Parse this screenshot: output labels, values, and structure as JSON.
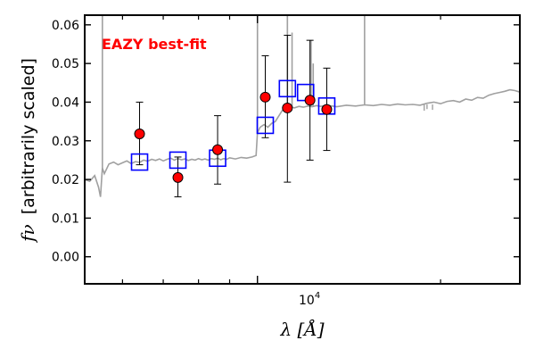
{
  "chart_data": {
    "type": "scatter",
    "annotation": "EAZY best-fit",
    "annotation_color": "#ff0000",
    "xlabel": "λ [Å]",
    "ylabel_symbol": "fν",
    "ylabel_text": "[arbitrarily scaled]",
    "xscale": "log",
    "xlim": [
      5200,
      27000
    ],
    "ylim": [
      -0.007,
      0.0625
    ],
    "yticks": [
      0.0,
      0.01,
      0.02,
      0.03,
      0.04,
      0.05,
      0.06
    ],
    "ytick_labels": [
      "0.00",
      "0.01",
      "0.02",
      "0.03",
      "0.04",
      "0.05",
      "0.06"
    ],
    "xtick_major": 10000,
    "xtick_label_base": "10",
    "xtick_label_exp": "4",
    "xtick_minor": [
      6000,
      7000,
      8000,
      9000,
      20000
    ],
    "grid": false,
    "colors": {
      "observed": "#ff0000",
      "model_phot": "#0000ff",
      "template": "#a0a0a0",
      "errorbar": "#000000"
    },
    "observed": [
      {
        "x": 6400,
        "y": 0.0318,
        "lo": 0.0238,
        "hi": 0.04
      },
      {
        "x": 7400,
        "y": 0.0205,
        "lo": 0.0155,
        "hi": 0.0258
      },
      {
        "x": 8600,
        "y": 0.0277,
        "lo": 0.0188,
        "hi": 0.0365
      },
      {
        "x": 10300,
        "y": 0.0413,
        "lo": 0.0308,
        "hi": 0.052
      },
      {
        "x": 11200,
        "y": 0.0385,
        "lo": 0.0193,
        "hi": 0.0573
      },
      {
        "x": 12200,
        "y": 0.0405,
        "lo": 0.025,
        "hi": 0.056
      },
      {
        "x": 13000,
        "y": 0.0381,
        "lo": 0.0275,
        "hi": 0.0488
      }
    ],
    "model_phot": [
      {
        "x": 6400,
        "y": 0.0245
      },
      {
        "x": 7400,
        "y": 0.025
      },
      {
        "x": 8600,
        "y": 0.0255
      },
      {
        "x": 10300,
        "y": 0.034
      },
      {
        "x": 11200,
        "y": 0.0435
      },
      {
        "x": 12000,
        "y": 0.0425
      },
      {
        "x": 13000,
        "y": 0.039
      }
    ],
    "template": [
      [
        5200,
        0.02
      ],
      [
        5300,
        0.0195
      ],
      [
        5400,
        0.021
      ],
      [
        5480,
        0.018
      ],
      [
        5520,
        0.0155
      ],
      [
        5560,
        0.023
      ],
      [
        5600,
        0.0215
      ],
      [
        5700,
        0.024
      ],
      [
        5800,
        0.0245
      ],
      [
        5900,
        0.0238
      ],
      [
        6000,
        0.0243
      ],
      [
        6100,
        0.0248
      ],
      [
        6200,
        0.0241
      ],
      [
        6300,
        0.0246
      ],
      [
        6400,
        0.0244
      ],
      [
        6500,
        0.025
      ],
      [
        6600,
        0.0247
      ],
      [
        6700,
        0.0252
      ],
      [
        6800,
        0.0249
      ],
      [
        6900,
        0.0253
      ],
      [
        7000,
        0.0248
      ],
      [
        7100,
        0.0252
      ],
      [
        7200,
        0.0255
      ],
      [
        7300,
        0.025
      ],
      [
        7400,
        0.0254
      ],
      [
        7500,
        0.0251
      ],
      [
        7600,
        0.0253
      ],
      [
        7700,
        0.0249
      ],
      [
        7800,
        0.0252
      ],
      [
        7900,
        0.025
      ],
      [
        8000,
        0.0254
      ],
      [
        8100,
        0.0251
      ],
      [
        8200,
        0.0253
      ],
      [
        8300,
        0.025
      ],
      [
        8400,
        0.0254
      ],
      [
        8500,
        0.0252
      ],
      [
        8600,
        0.0255
      ],
      [
        8700,
        0.0251
      ],
      [
        8800,
        0.0254
      ],
      [
        8900,
        0.0252
      ],
      [
        9000,
        0.0256
      ],
      [
        9200,
        0.0253
      ],
      [
        9400,
        0.0257
      ],
      [
        9600,
        0.0255
      ],
      [
        9800,
        0.0258
      ],
      [
        9950,
        0.0262
      ],
      [
        10000,
        0.032
      ],
      [
        10100,
        0.0335
      ],
      [
        10250,
        0.0342
      ],
      [
        10400,
        0.0335
      ],
      [
        10550,
        0.0345
      ],
      [
        10700,
        0.035
      ],
      [
        10850,
        0.0365
      ],
      [
        11000,
        0.038
      ],
      [
        11100,
        0.0385
      ],
      [
        11200,
        0.0387
      ],
      [
        11300,
        0.0383
      ],
      [
        11400,
        0.0387
      ],
      [
        11500,
        0.0385
      ],
      [
        11700,
        0.0389
      ],
      [
        11900,
        0.0387
      ],
      [
        12100,
        0.039
      ],
      [
        12300,
        0.0388
      ],
      [
        12500,
        0.0391
      ],
      [
        12700,
        0.0389
      ],
      [
        13000,
        0.0392
      ],
      [
        13500,
        0.0388
      ],
      [
        14000,
        0.0392
      ],
      [
        14500,
        0.039
      ],
      [
        15000,
        0.0393
      ],
      [
        15500,
        0.0391
      ],
      [
        16000,
        0.0394
      ],
      [
        16500,
        0.0392
      ],
      [
        17000,
        0.0395
      ],
      [
        17500,
        0.0393
      ],
      [
        18000,
        0.0394
      ],
      [
        18500,
        0.0392
      ],
      [
        19000,
        0.0397
      ],
      [
        19500,
        0.04
      ],
      [
        20000,
        0.0396
      ],
      [
        20500,
        0.0402
      ],
      [
        21000,
        0.0404
      ],
      [
        21500,
        0.04
      ],
      [
        22000,
        0.0408
      ],
      [
        22500,
        0.0405
      ],
      [
        23000,
        0.0412
      ],
      [
        23500,
        0.041
      ],
      [
        24000,
        0.0418
      ],
      [
        24500,
        0.0422
      ],
      [
        25000,
        0.0425
      ],
      [
        25500,
        0.0428
      ],
      [
        26000,
        0.0432
      ],
      [
        26500,
        0.043
      ],
      [
        27000,
        0.0426
      ]
    ],
    "template_lines": [
      {
        "x": 5560,
        "y": 0.064
      },
      {
        "x": 10000,
        "y": 0.064
      },
      {
        "x": 11200,
        "y": 0.064
      },
      {
        "x": 11400,
        "y": 0.058
      },
      {
        "x": 12250,
        "y": 0.056
      },
      {
        "x": 12350,
        "y": 0.05
      },
      {
        "x": 15000,
        "y": 0.064
      }
    ],
    "template_dips": [
      {
        "x": 18800,
        "y": 0.0378
      },
      {
        "x": 19000,
        "y": 0.0382
      },
      {
        "x": 19400,
        "y": 0.038
      }
    ]
  }
}
